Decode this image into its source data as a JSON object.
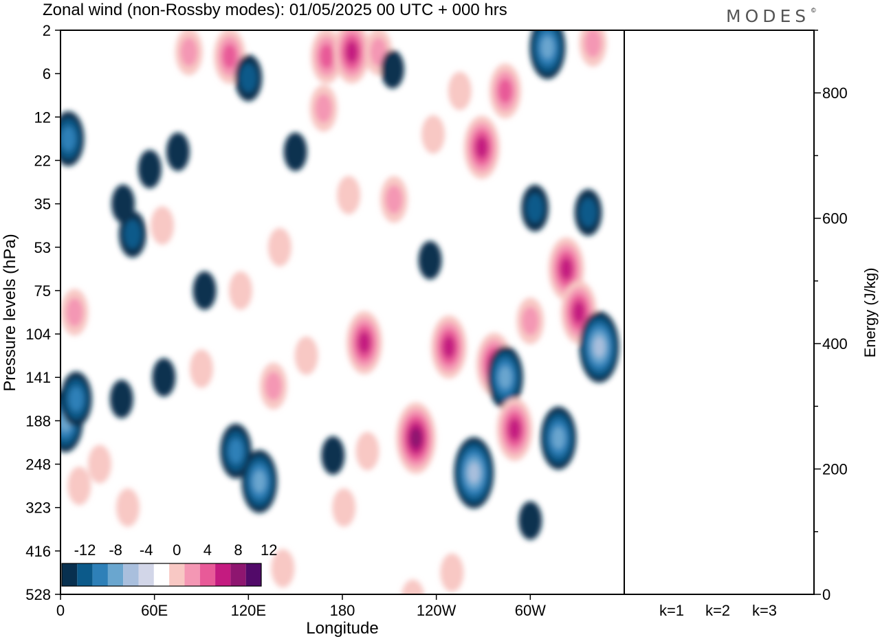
{
  "title": "Zonal wind (non-Rossby modes):  01/05/2025  00 UTC  + 000 hrs",
  "logo": {
    "text": "MODES",
    "mark": "©"
  },
  "colors": {
    "neg": [
      "#08304f",
      "#0c5a8a",
      "#2e80b8",
      "#6aa6cf",
      "#a9bfdd",
      "#d2d6e8"
    ],
    "neutral": "#ffffff",
    "pos": [
      "#f8c8c4",
      "#f497b4",
      "#e85a98",
      "#c41b80",
      "#8e1670",
      "#520a69"
    ]
  },
  "chart_data": [
    {
      "type": "heatmap",
      "title": "Zonal wind (non-Rossby modes):  01/05/2025  00 UTC  + 000 hrs",
      "xlabel": "Longitude",
      "ylabel": "Pressure levels (hPa)",
      "x_ticks": [
        "0",
        "60E",
        "120E",
        "180",
        "120W",
        "60W"
      ],
      "y_ticks": [
        "2",
        "6",
        "12",
        "22",
        "35",
        "53",
        "75",
        "104",
        "141",
        "188",
        "248",
        "323",
        "416",
        "528"
      ],
      "colorbar": {
        "labels": [
          "-12",
          "-8",
          "-4",
          "0",
          "4",
          "8",
          "12"
        ],
        "levels": [
          -14,
          -12,
          -10,
          -8,
          -6,
          -4,
          -2,
          2,
          4,
          6,
          8,
          10,
          12,
          14
        ]
      },
      "features": [
        {
          "lon": 5,
          "level": 2.5,
          "value": -6
        },
        {
          "lon": 3,
          "level": 9.0,
          "value": -9
        },
        {
          "lon": 10,
          "level": 8.5,
          "value": -7
        },
        {
          "lon": 9,
          "level": 6.5,
          "value": 4.5
        },
        {
          "lon": 12,
          "level": 10.5,
          "value": 3.5
        },
        {
          "lon": 40,
          "level": 4.0,
          "value": -3.5
        },
        {
          "lon": 39,
          "level": 8.5,
          "value": -3
        },
        {
          "lon": 46,
          "level": 4.7,
          "value": -5
        },
        {
          "lon": 43,
          "level": 11.0,
          "value": 3
        },
        {
          "lon": 57,
          "level": 3.2,
          "value": -3
        },
        {
          "lon": 66,
          "level": 8.0,
          "value": -3
        },
        {
          "lon": 75,
          "level": 2.8,
          "value": -3
        },
        {
          "lon": 82,
          "level": 0.5,
          "value": 5
        },
        {
          "lon": 90,
          "level": 7.8,
          "value": 3.5
        },
        {
          "lon": 92,
          "level": 6.0,
          "value": -3
        },
        {
          "lon": 108,
          "level": 0.6,
          "value": 7
        },
        {
          "lon": 112,
          "level": 9.7,
          "value": -7
        },
        {
          "lon": 115,
          "level": 6.0,
          "value": 3.5
        },
        {
          "lon": 120,
          "level": 1.1,
          "value": -4
        },
        {
          "lon": 127,
          "level": 10.4,
          "value": -9
        },
        {
          "lon": 136,
          "level": 8.2,
          "value": 4
        },
        {
          "lon": 150,
          "level": 2.8,
          "value": -3
        },
        {
          "lon": 157,
          "level": 7.5,
          "value": 3.5
        },
        {
          "lon": 168,
          "level": 1.8,
          "value": 4
        },
        {
          "lon": 170,
          "level": 0.6,
          "value": 7
        },
        {
          "lon": 174,
          "level": 9.8,
          "value": -3
        },
        {
          "lon": 186,
          "level": 0.5,
          "value": 8
        },
        {
          "lon": 194,
          "level": 7.2,
          "value": 8
        },
        {
          "lon": 196,
          "level": 9.7,
          "value": 3.5
        },
        {
          "lon": 203,
          "level": 0.5,
          "value": 5
        },
        {
          "lon": 213,
          "level": 3.9,
          "value": 4
        },
        {
          "lon": 212,
          "level": 0.9,
          "value": -3
        },
        {
          "lon": 227,
          "level": 9.4,
          "value": 10
        },
        {
          "lon": 238,
          "level": 2.4,
          "value": 3.5
        },
        {
          "lon": 248,
          "level": 7.3,
          "value": 8
        },
        {
          "lon": 255,
          "level": 1.4,
          "value": 3.5
        },
        {
          "lon": 264,
          "level": 10.2,
          "value": -10
        },
        {
          "lon": 269,
          "level": 2.7,
          "value": 8
        },
        {
          "lon": 277,
          "level": 7.7,
          "value": 9
        },
        {
          "lon": 284,
          "level": 8.0,
          "value": -9
        },
        {
          "lon": 284,
          "level": 1.4,
          "value": 6
        },
        {
          "lon": 290,
          "level": 9.2,
          "value": 8
        },
        {
          "lon": 300,
          "level": 6.7,
          "value": 4
        },
        {
          "lon": 303,
          "level": 4.1,
          "value": -4
        },
        {
          "lon": 311,
          "level": 0.4,
          "value": -9
        },
        {
          "lon": 318,
          "level": 9.4,
          "value": -9
        },
        {
          "lon": 323,
          "level": 5.5,
          "value": 9
        },
        {
          "lon": 331,
          "level": 6.5,
          "value": 8
        },
        {
          "lon": 337,
          "level": 4.2,
          "value": -4
        },
        {
          "lon": 344,
          "level": 7.3,
          "value": -11
        },
        {
          "lon": 340,
          "level": 0.3,
          "value": 5
        },
        {
          "lon": 25,
          "level": 10.0,
          "value": 2.5
        },
        {
          "lon": 65,
          "level": 4.5,
          "value": 3
        },
        {
          "lon": 140,
          "level": 5.0,
          "value": 3
        },
        {
          "lon": 184,
          "level": 3.8,
          "value": 3
        },
        {
          "lon": 236,
          "level": 5.3,
          "value": -3
        },
        {
          "lon": 181,
          "level": 11.0,
          "value": 3
        },
        {
          "lon": 300,
          "level": 11.3,
          "value": -3
        },
        {
          "lon": 250,
          "level": 12.5,
          "value": 3
        },
        {
          "lon": 225,
          "level": 13.1,
          "value": 3
        },
        {
          "lon": 142,
          "level": 12.4,
          "value": 2.5
        }
      ]
    },
    {
      "type": "bar",
      "title": "",
      "categories": [
        "k=1",
        "k=2",
        "k=3"
      ],
      "values": [
        1,
        1,
        1
      ],
      "ylabel": "Energy (J/kg)",
      "ylim": [
        0,
        900
      ],
      "y_ticks": [
        "0",
        "200",
        "400",
        "600",
        "800"
      ]
    }
  ]
}
